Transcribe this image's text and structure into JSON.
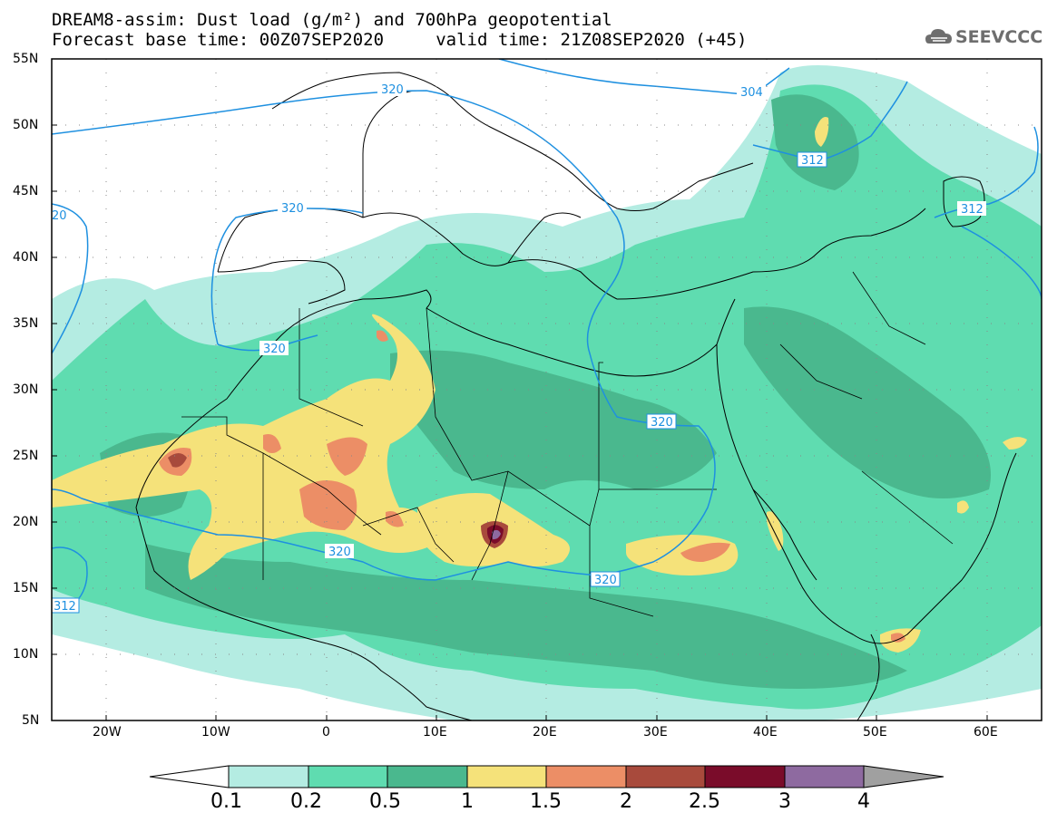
{
  "title": {
    "line1": "DREAM8-assim: Dust load (g/m²) and 700hPa geopotential",
    "line2": "Forecast base time: 00Z07SEP2020     valid time: 21Z08SEP2020 (+45)"
  },
  "logo": {
    "text": "SEEVCCC",
    "icon": "cloud-logo-icon"
  },
  "axes": {
    "lat_labels": [
      "55N",
      "50N",
      "45N",
      "40N",
      "35N",
      "30N",
      "25N",
      "20N",
      "15N",
      "10N",
      "5N"
    ],
    "lon_labels": [
      "20W",
      "10W",
      "0",
      "10E",
      "20E",
      "30E",
      "40E",
      "50E",
      "60E"
    ],
    "lat_range": [
      5,
      55
    ],
    "lon_range": [
      -25,
      65
    ]
  },
  "contour_labels": [
    {
      "text": "320"
    },
    {
      "text": "304"
    },
    {
      "text": "312"
    },
    {
      "text": "312"
    },
    {
      "text": "320"
    },
    {
      "text": "320"
    },
    {
      "text": "320"
    },
    {
      "text": "320"
    },
    {
      "text": "320"
    },
    {
      "text": "312"
    },
    {
      "text": "20"
    }
  ],
  "colorbar": {
    "labels": [
      "0.1",
      "0.2",
      "0.5",
      "1",
      "1.5",
      "2",
      "2.5",
      "3",
      "4"
    ],
    "colors": [
      "#b4ece2",
      "#5fdcb0",
      "#4ab88e",
      "#f5e27a",
      "#ec8e66",
      "#a84a3c",
      "#7a0c2a",
      "#8e6aa0",
      "#a0a0a0"
    ]
  }
}
